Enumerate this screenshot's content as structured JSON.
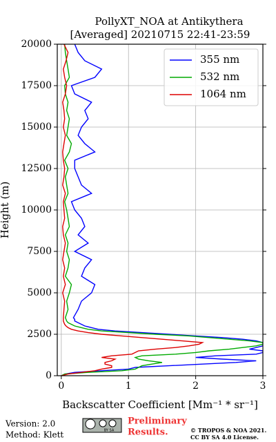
{
  "chart_data": {
    "type": "profile",
    "title": "PollyXT_NOA at Antikythera",
    "subtitle": "[Averaged] 20210715 22:41-23:59",
    "xlabel": "Backscatter Coefficient [Mm⁻¹ * sr⁻¹]",
    "ylabel": "Height (m)",
    "xlim": [
      -0.06,
      3
    ],
    "xticks": [
      0,
      1,
      2,
      3
    ],
    "ylim": [
      0,
      20000
    ],
    "yticks": [
      0,
      2500,
      5000,
      7500,
      10000,
      12500,
      15000,
      17500,
      20000
    ],
    "grid": true,
    "legend": "upper right",
    "heights": [
      0,
      100,
      200,
      300,
      400,
      500,
      600,
      700,
      800,
      900,
      1000,
      1100,
      1200,
      1300,
      1400,
      1500,
      1600,
      1700,
      1800,
      1900,
      2000,
      2100,
      2200,
      2300,
      2400,
      2500,
      2600,
      2700,
      2800,
      2900,
      3000,
      3100,
      3200,
      3300,
      3400,
      3500,
      4000,
      4500,
      5000,
      5500,
      6000,
      6500,
      7000,
      7500,
      8000,
      8500,
      9000,
      9500,
      10000,
      10500,
      11000,
      11500,
      12000,
      12500,
      13000,
      13500,
      14000,
      14500,
      15000,
      15500,
      16000,
      16500,
      17000,
      17500,
      18000,
      18500,
      19000,
      19500,
      20000
    ],
    "series": [
      {
        "name": "355 nm",
        "color": "#0000ff",
        "values": [
          0.02,
          0.05,
          0.2,
          0.6,
          1.0,
          1.1,
          1.6,
          2.1,
          2.6,
          2.9,
          2.4,
          2.0,
          2.3,
          2.9,
          3.0,
          3.0,
          2.8,
          2.9,
          3.0,
          3.0,
          3.0,
          2.9,
          2.7,
          2.4,
          2.0,
          1.6,
          1.2,
          0.8,
          0.55,
          0.45,
          0.35,
          0.3,
          0.25,
          0.2,
          0.2,
          0.18,
          0.25,
          0.3,
          0.45,
          0.5,
          0.3,
          0.35,
          0.45,
          0.2,
          0.4,
          0.25,
          0.35,
          0.3,
          0.2,
          0.15,
          0.45,
          0.3,
          0.25,
          0.2,
          0.2,
          0.5,
          0.35,
          0.25,
          0.3,
          0.4,
          0.35,
          0.45,
          0.2,
          0.15,
          0.5,
          0.6,
          0.35,
          0.25,
          0.2
        ]
      },
      {
        "name": "532 nm",
        "color": "#00aa00",
        "values": [
          0.0,
          0.05,
          0.4,
          0.9,
          1.1,
          1.15,
          1.2,
          1.35,
          1.5,
          1.3,
          1.15,
          1.1,
          1.2,
          1.7,
          2.0,
          2.2,
          2.5,
          2.7,
          2.9,
          3.0,
          3.0,
          2.8,
          2.5,
          2.2,
          1.9,
          1.4,
          1.0,
          0.6,
          0.4,
          0.3,
          0.2,
          0.15,
          0.1,
          0.08,
          0.07,
          0.06,
          0.1,
          0.08,
          0.12,
          0.15,
          0.06,
          0.1,
          0.12,
          0.08,
          0.1,
          0.06,
          0.12,
          0.1,
          0.08,
          0.05,
          0.1,
          0.08,
          0.06,
          0.1,
          0.05,
          0.12,
          0.15,
          0.08,
          0.1,
          0.12,
          0.08,
          0.1,
          0.06,
          0.05,
          0.12,
          0.1,
          0.08,
          0.06,
          0.05
        ]
      },
      {
        "name": "1064 nm",
        "color": "#dd0000",
        "values": [
          0.0,
          0.1,
          0.3,
          0.5,
          0.6,
          0.75,
          0.75,
          0.65,
          0.65,
          0.75,
          0.8,
          0.6,
          0.75,
          1.05,
          1.1,
          1.15,
          1.4,
          1.7,
          1.9,
          2.05,
          2.1,
          1.8,
          1.5,
          1.2,
          0.9,
          0.6,
          0.4,
          0.25,
          0.15,
          0.1,
          0.07,
          0.05,
          0.04,
          0.03,
          0.03,
          0.03,
          0.04,
          0.05,
          0.02,
          0.06,
          0.03,
          0.05,
          0.02,
          0.04,
          0.06,
          0.03,
          0.02,
          0.05,
          0.04,
          0.03,
          0.06,
          0.02,
          0.04,
          0.05,
          0.03,
          0.02,
          0.04,
          0.06,
          0.03,
          0.05,
          0.04,
          0.02,
          0.06,
          0.08,
          0.05,
          0.03,
          0.07,
          0.1,
          0.04
        ]
      }
    ]
  },
  "footer": {
    "version": "Version: 2.0",
    "method": "Method: Klett",
    "badge": "BY SA",
    "notice_line1": "Preliminary",
    "notice_line2": "Results.",
    "copyright": "© TROPOS & NOA 2021.",
    "license": "CC BY SA 4.0 License."
  }
}
